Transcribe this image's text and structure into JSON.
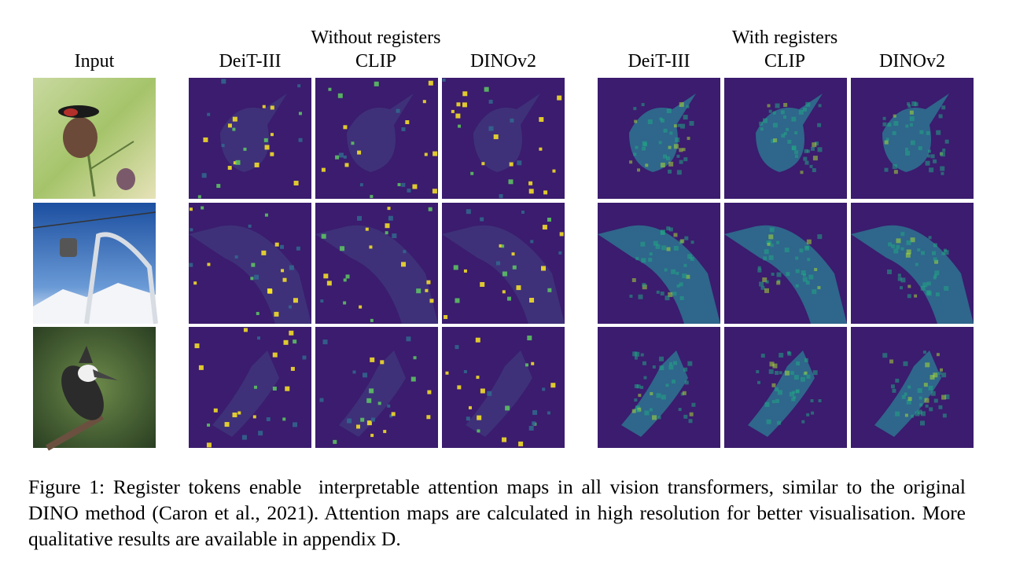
{
  "figure": {
    "input_label": "Input",
    "groups": [
      {
        "title": "Without registers",
        "columns": [
          "DeiT-III",
          "CLIP",
          "DINOv2"
        ]
      },
      {
        "title": "With registers",
        "columns": [
          "DeiT-III",
          "CLIP",
          "DINOv2"
        ]
      }
    ],
    "caption": "Figure 1: Register tokens enable  interpretable attention maps in all vision transformers, similar to the original DINO method (Caron et al., 2021). Attention maps are calculated in high resolution for better visualisation. More qualitative results are available in appendix D."
  }
}
